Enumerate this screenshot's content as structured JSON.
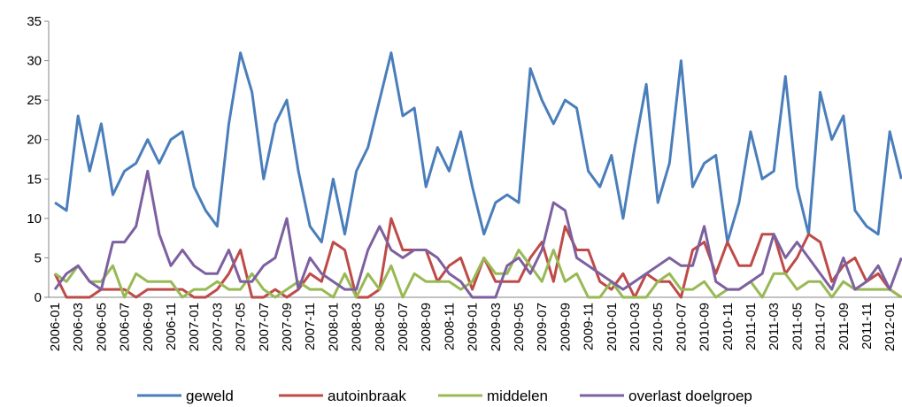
{
  "chart_data": {
    "type": "line",
    "categories": [
      "2006-01",
      null,
      "2006-03",
      null,
      "2006-05",
      null,
      "2006-07",
      null,
      "2006-09",
      null,
      "2006-11",
      null,
      "2007-01",
      null,
      "2007-03",
      null,
      "2007-05",
      null,
      "2007-07",
      null,
      "2007-09",
      null,
      "2007-11",
      null,
      "2008-01",
      null,
      "2008-03",
      null,
      "2008-05",
      null,
      "2008-07",
      null,
      "2008-09",
      null,
      "2008-11",
      null,
      "2009-01",
      null,
      "2009-03",
      null,
      "2009-05",
      null,
      "2009-07",
      null,
      "2009-09",
      null,
      "2009-11",
      null,
      "2010-01",
      null,
      "2010-03",
      null,
      "2010-05",
      null,
      "2010-07",
      null,
      "2010-09",
      null,
      "2010-11",
      null,
      "2011-01",
      null,
      "2011-03",
      null,
      "2011-05",
      null,
      "2011-07",
      null,
      "2011-09",
      null,
      "2011-11",
      null,
      "2012-01",
      null
    ],
    "series": [
      {
        "name": "geweld",
        "color": "#4a7ebb",
        "values": [
          12,
          11,
          23,
          16,
          22,
          13,
          16,
          17,
          20,
          17,
          20,
          21,
          14,
          11,
          9,
          22,
          31,
          26,
          15,
          22,
          25,
          16,
          9,
          7,
          15,
          8,
          16,
          19,
          25,
          31,
          23,
          24,
          14,
          19,
          16,
          21,
          14,
          8,
          12,
          13,
          12,
          29,
          25,
          22,
          25,
          24,
          16,
          14,
          18,
          10,
          19,
          27,
          12,
          17,
          30,
          14,
          17,
          18,
          7,
          12,
          21,
          15,
          16,
          28,
          14,
          8,
          26,
          20,
          23,
          11,
          9,
          8,
          21,
          15
        ]
      },
      {
        "name": "autoinbraak",
        "color": "#be4b48",
        "values": [
          3,
          0,
          0,
          0,
          1,
          1,
          1,
          0,
          1,
          1,
          1,
          1,
          0,
          0,
          1,
          3,
          6,
          0,
          0,
          1,
          0,
          1,
          3,
          2,
          7,
          6,
          0,
          0,
          1,
          10,
          6,
          6,
          6,
          2,
          4,
          5,
          1,
          5,
          2,
          2,
          2,
          5,
          7,
          2,
          9,
          6,
          6,
          2,
          1,
          3,
          0,
          3,
          2,
          2,
          0,
          6,
          7,
          3,
          7,
          4,
          4,
          8,
          8,
          3,
          5,
          8,
          7,
          2,
          4,
          5,
          2,
          3,
          1,
          0
        ]
      },
      {
        "name": "middelen",
        "color": "#98b954",
        "values": [
          3,
          2,
          4,
          2,
          2,
          4,
          0,
          3,
          2,
          2,
          2,
          0,
          1,
          1,
          2,
          1,
          1,
          3,
          1,
          0,
          1,
          2,
          1,
          1,
          0,
          3,
          0,
          3,
          1,
          4,
          0,
          3,
          2,
          2,
          2,
          1,
          2,
          5,
          3,
          3,
          6,
          4,
          2,
          6,
          2,
          3,
          0,
          0,
          2,
          0,
          0,
          0,
          2,
          3,
          1,
          1,
          2,
          0,
          1,
          1,
          2,
          0,
          3,
          3,
          1,
          2,
          2,
          0,
          2,
          1,
          1,
          1,
          1,
          0
        ]
      },
      {
        "name": "overlast doelgroep",
        "color": "#7d60a0",
        "values": [
          1,
          3,
          4,
          2,
          1,
          7,
          7,
          9,
          16,
          8,
          4,
          6,
          4,
          3,
          3,
          6,
          2,
          2,
          4,
          5,
          10,
          1,
          5,
          3,
          2,
          1,
          1,
          6,
          9,
          6,
          5,
          6,
          6,
          5,
          3,
          2,
          0,
          0,
          0,
          4,
          5,
          3,
          6,
          12,
          11,
          5,
          4,
          3,
          2,
          1,
          2,
          3,
          4,
          5,
          4,
          4,
          9,
          2,
          1,
          1,
          2,
          3,
          8,
          5,
          7,
          5,
          3,
          1,
          5,
          1,
          2,
          4,
          1,
          5
        ]
      }
    ],
    "ylim": [
      0,
      35
    ],
    "yticks": [
      0,
      5,
      10,
      15,
      20,
      25,
      30,
      35
    ],
    "legend": "bottom"
  }
}
